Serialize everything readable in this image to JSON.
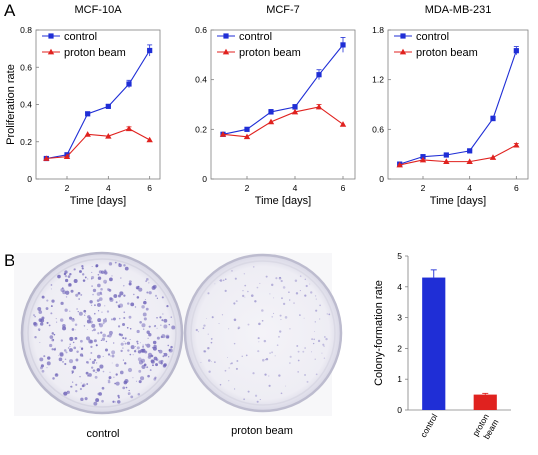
{
  "panel_labels": {
    "a": "A",
    "b": "B"
  },
  "colors": {
    "control": "#1f2ed6",
    "proton": "#e0221f",
    "dish_stain": "#6e63b8"
  },
  "legend": {
    "control": "control",
    "proton": "proton beam"
  },
  "dish_labels": {
    "left": "control",
    "right": "proton beam"
  },
  "chart_data": [
    {
      "type": "line",
      "title": "MCF-10A",
      "xlabel": "Time [days]",
      "ylabel": "Proliferation rate",
      "x": [
        1,
        2,
        3,
        4,
        5,
        6
      ],
      "xlim": [
        0.5,
        6.5
      ],
      "xticks": [
        2,
        4,
        6
      ],
      "ylim": [
        0,
        0.8
      ],
      "yticks": [
        0,
        0.2,
        0.4,
        0.6,
        0.8
      ],
      "ytick_labels": [
        "0",
        "0.2",
        "0.4",
        "0.6",
        "0.8"
      ],
      "legend_position": "top-left",
      "series": [
        {
          "name": "control",
          "values": [
            0.11,
            0.13,
            0.35,
            0.39,
            0.51,
            0.69
          ],
          "errors": [
            0,
            0,
            0.01,
            0.01,
            0.02,
            0.03
          ]
        },
        {
          "name": "proton beam",
          "values": [
            0.11,
            0.12,
            0.24,
            0.23,
            0.27,
            0.21
          ],
          "errors": [
            0,
            0,
            0,
            0,
            0.01,
            0
          ]
        }
      ]
    },
    {
      "type": "line",
      "title": "MCF-7",
      "xlabel": "Time [days]",
      "ylabel": "",
      "x": [
        1,
        2,
        3,
        4,
        5,
        6
      ],
      "xlim": [
        0.5,
        6.5
      ],
      "xticks": [
        2,
        4,
        6
      ],
      "ylim": [
        0,
        0.6
      ],
      "yticks": [
        0,
        0.2,
        0.4,
        0.6
      ],
      "ytick_labels": [
        "0",
        "0.2",
        "0.4",
        "0.6"
      ],
      "legend_position": "top-left",
      "series": [
        {
          "name": "control",
          "values": [
            0.18,
            0.2,
            0.27,
            0.29,
            0.42,
            0.54
          ],
          "errors": [
            0,
            0,
            0.01,
            0.01,
            0.02,
            0.03
          ]
        },
        {
          "name": "proton beam",
          "values": [
            0.18,
            0.17,
            0.23,
            0.27,
            0.29,
            0.22
          ],
          "errors": [
            0,
            0,
            0,
            0,
            0.01,
            0
          ]
        }
      ]
    },
    {
      "type": "line",
      "title": "MDA-MB-231",
      "xlabel": "Time [days]",
      "ylabel": "",
      "x": [
        1,
        2,
        3,
        4,
        5,
        6
      ],
      "xlim": [
        0.5,
        6.5
      ],
      "xticks": [
        2,
        4,
        6
      ],
      "ylim": [
        0,
        1.8
      ],
      "yticks": [
        0,
        0.6,
        1.2,
        1.8
      ],
      "ytick_labels": [
        "0",
        "0.6",
        "1.2",
        "1.8"
      ],
      "legend_position": "top-left",
      "series": [
        {
          "name": "control",
          "values": [
            0.18,
            0.27,
            0.29,
            0.34,
            0.73,
            1.55
          ],
          "errors": [
            0,
            0,
            0.01,
            0.01,
            0.03,
            0.05
          ]
        },
        {
          "name": "proton beam",
          "values": [
            0.17,
            0.23,
            0.21,
            0.21,
            0.26,
            0.41
          ],
          "errors": [
            0,
            0,
            0,
            0,
            0,
            0.02
          ]
        }
      ]
    },
    {
      "type": "bar",
      "title": "",
      "xlabel": "",
      "ylabel": "Colony-formation rate",
      "categories": [
        "control",
        "proton beam"
      ],
      "category_lines": [
        [
          "control"
        ],
        [
          "proton",
          "beam"
        ]
      ],
      "ylim": [
        0,
        5
      ],
      "yticks": [
        0,
        1,
        2,
        3,
        4,
        5
      ],
      "ytick_labels": [
        "0",
        "1",
        "2",
        "3",
        "4",
        "5"
      ],
      "values": [
        4.3,
        0.5
      ],
      "errors": [
        0.25,
        0.04
      ],
      "bar_colors": [
        "#1f2ed6",
        "#e0221f"
      ]
    }
  ]
}
